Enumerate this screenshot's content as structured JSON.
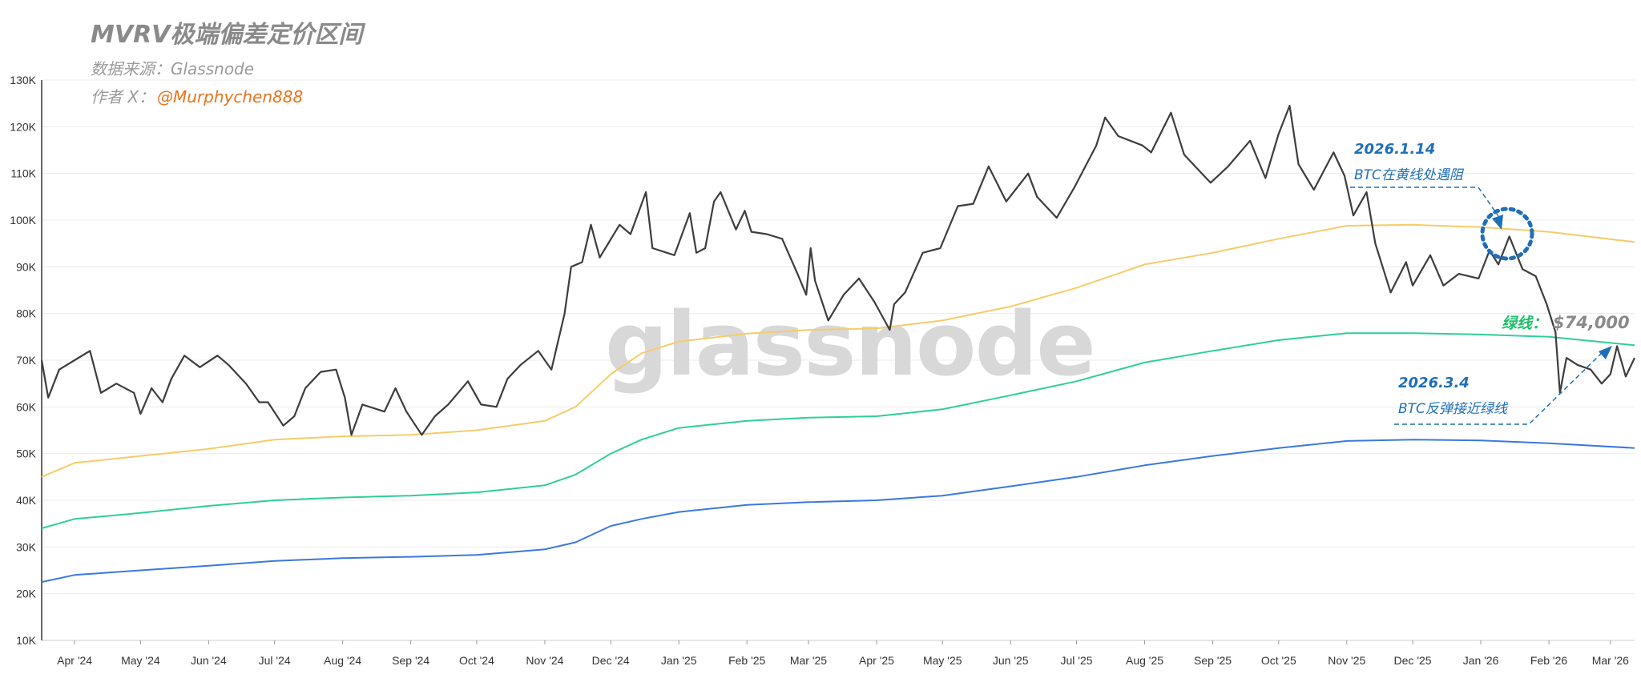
{
  "header": {
    "title": "MVRV极端偏差定价区间",
    "source": "数据来源：Glassnode",
    "author_prefix": "作者 X：",
    "author_handle": "@Murphychen888"
  },
  "watermark": "glassnode",
  "annotations": {
    "jan_date": "2026.1.14",
    "jan_text": "BTC在黄线处遇阻",
    "mar_date": "2026.3.4",
    "mar_text": "BTC反弹接近绿线",
    "green_line_label": "绿线：",
    "price_label": "$74,000"
  },
  "colors": {
    "btc": "#3d3d3d",
    "yellow": "#f5cc6a",
    "green": "#2fcf94",
    "blue": "#3b78de",
    "annotation": "#1f6fb8"
  },
  "chart_data": {
    "type": "line",
    "title": "MVRV极端偏差定价区间",
    "y_ticks": [
      "10K",
      "20K",
      "30K",
      "40K",
      "50K",
      "60K",
      "70K",
      "80K",
      "90K",
      "100K",
      "110K",
      "120K",
      "130K"
    ],
    "ylim": [
      10000,
      130000
    ],
    "x_ticks": [
      "Apr '24",
      "May '24",
      "Jun '24",
      "Jul '24",
      "Aug '24",
      "Sep '24",
      "Oct '24",
      "Nov '24",
      "Dec '24",
      "Jan '25",
      "Feb '25",
      "Mar '25",
      "Apr '25",
      "May '25",
      "Jun '25",
      "Jul '25",
      "Aug '25",
      "Sep '25",
      "Oct '25",
      "Nov '25",
      "Dec '25",
      "Jan '26",
      "Feb '26",
      "Mar '26"
    ],
    "xlim": [
      "2024-03-17",
      "2026-03-12"
    ],
    "series": [
      {
        "key": "btc",
        "color": "#3d3d3d",
        "points": [
          [
            "2024-03-17",
            70000
          ],
          [
            "2024-03-20",
            62000
          ],
          [
            "2024-03-25",
            68000
          ],
          [
            "2024-04-01",
            70000
          ],
          [
            "2024-04-08",
            72000
          ],
          [
            "2024-04-13",
            63000
          ],
          [
            "2024-04-20",
            65000
          ],
          [
            "2024-04-28",
            63000
          ],
          [
            "2024-05-01",
            58500
          ],
          [
            "2024-05-06",
            64000
          ],
          [
            "2024-05-11",
            61000
          ],
          [
            "2024-05-15",
            66000
          ],
          [
            "2024-05-21",
            71000
          ],
          [
            "2024-05-28",
            68500
          ],
          [
            "2024-06-05",
            71000
          ],
          [
            "2024-06-10",
            69000
          ],
          [
            "2024-06-18",
            65000
          ],
          [
            "2024-06-24",
            61000
          ],
          [
            "2024-06-28",
            61000
          ],
          [
            "2024-07-05",
            56000
          ],
          [
            "2024-07-10",
            58000
          ],
          [
            "2024-07-15",
            64000
          ],
          [
            "2024-07-22",
            67500
          ],
          [
            "2024-07-29",
            68000
          ],
          [
            "2024-08-02",
            62000
          ],
          [
            "2024-08-05",
            54000
          ],
          [
            "2024-08-10",
            60500
          ],
          [
            "2024-08-20",
            59000
          ],
          [
            "2024-08-25",
            64000
          ],
          [
            "2024-08-30",
            59000
          ],
          [
            "2024-09-06",
            54000
          ],
          [
            "2024-09-12",
            58000
          ],
          [
            "2024-09-18",
            60500
          ],
          [
            "2024-09-27",
            65500
          ],
          [
            "2024-10-03",
            60500
          ],
          [
            "2024-10-10",
            60000
          ],
          [
            "2024-10-15",
            66000
          ],
          [
            "2024-10-21",
            69000
          ],
          [
            "2024-10-29",
            72000
          ],
          [
            "2024-11-04",
            68000
          ],
          [
            "2024-11-10",
            80000
          ],
          [
            "2024-11-13",
            90000
          ],
          [
            "2024-11-18",
            91000
          ],
          [
            "2024-11-22",
            99000
          ],
          [
            "2024-11-26",
            92000
          ],
          [
            "2024-12-05",
            99000
          ],
          [
            "2024-12-10",
            97000
          ],
          [
            "2024-12-17",
            106000
          ],
          [
            "2024-12-20",
            94000
          ],
          [
            "2024-12-30",
            92500
          ],
          [
            "2025-01-06",
            101500
          ],
          [
            "2025-01-09",
            93000
          ],
          [
            "2025-01-13",
            94000
          ],
          [
            "2025-01-17",
            104000
          ],
          [
            "2025-01-20",
            106000
          ],
          [
            "2025-01-27",
            98000
          ],
          [
            "2025-01-31",
            102000
          ],
          [
            "2025-02-03",
            97500
          ],
          [
            "2025-02-10",
            97000
          ],
          [
            "2025-02-17",
            96000
          ],
          [
            "2025-02-24",
            88500
          ],
          [
            "2025-02-28",
            84000
          ],
          [
            "2025-03-02",
            94000
          ],
          [
            "2025-03-04",
            87000
          ],
          [
            "2025-03-10",
            78500
          ],
          [
            "2025-03-17",
            84000
          ],
          [
            "2025-03-24",
            87500
          ],
          [
            "2025-03-31",
            82500
          ],
          [
            "2025-04-07",
            76500
          ],
          [
            "2025-04-09",
            82000
          ],
          [
            "2025-04-14",
            84500
          ],
          [
            "2025-04-22",
            93000
          ],
          [
            "2025-04-30",
            94000
          ],
          [
            "2025-05-08",
            103000
          ],
          [
            "2025-05-15",
            103500
          ],
          [
            "2025-05-22",
            111500
          ],
          [
            "2025-05-30",
            104000
          ],
          [
            "2025-06-09",
            110000
          ],
          [
            "2025-06-13",
            105000
          ],
          [
            "2025-06-22",
            100500
          ],
          [
            "2025-06-30",
            107000
          ],
          [
            "2025-07-10",
            116000
          ],
          [
            "2025-07-14",
            122000
          ],
          [
            "2025-07-20",
            118000
          ],
          [
            "2025-07-31",
            116000
          ],
          [
            "2025-08-04",
            114500
          ],
          [
            "2025-08-13",
            123000
          ],
          [
            "2025-08-19",
            114000
          ],
          [
            "2025-08-26",
            110500
          ],
          [
            "2025-08-31",
            108000
          ],
          [
            "2025-09-08",
            111500
          ],
          [
            "2025-09-18",
            117000
          ],
          [
            "2025-09-25",
            109000
          ],
          [
            "2025-10-01",
            118500
          ],
          [
            "2025-10-06",
            124500
          ],
          [
            "2025-10-10",
            112000
          ],
          [
            "2025-10-17",
            106500
          ],
          [
            "2025-10-26",
            114500
          ],
          [
            "2025-10-31",
            109500
          ],
          [
            "2025-11-04",
            101000
          ],
          [
            "2025-11-10",
            106000
          ],
          [
            "2025-11-14",
            95000
          ],
          [
            "2025-11-21",
            84500
          ],
          [
            "2025-11-28",
            91000
          ],
          [
            "2025-12-01",
            86000
          ],
          [
            "2025-12-09",
            92500
          ],
          [
            "2025-12-15",
            86000
          ],
          [
            "2025-12-22",
            88500
          ],
          [
            "2025-12-31",
            87500
          ],
          [
            "2026-01-05",
            93500
          ],
          [
            "2026-01-09",
            90500
          ],
          [
            "2026-01-14",
            96500
          ],
          [
            "2026-01-20",
            89500
          ],
          [
            "2026-01-26",
            88000
          ],
          [
            "2026-01-31",
            82000
          ],
          [
            "2026-02-04",
            76000
          ],
          [
            "2026-02-06",
            63000
          ],
          [
            "2026-02-09",
            70500
          ],
          [
            "2026-02-14",
            69000
          ],
          [
            "2026-02-20",
            68000
          ],
          [
            "2026-02-25",
            65000
          ],
          [
            "2026-03-01",
            67000
          ],
          [
            "2026-03-04",
            73000
          ],
          [
            "2026-03-08",
            66500
          ],
          [
            "2026-03-12",
            70500
          ]
        ]
      },
      {
        "key": "yellow",
        "color": "#f5cc6a",
        "points": [
          [
            "2024-03-17",
            45000
          ],
          [
            "2024-04-01",
            48000
          ],
          [
            "2024-05-01",
            49500
          ],
          [
            "2024-06-01",
            51000
          ],
          [
            "2024-07-01",
            53000
          ],
          [
            "2024-08-01",
            53700
          ],
          [
            "2024-09-01",
            54000
          ],
          [
            "2024-10-01",
            55000
          ],
          [
            "2024-11-01",
            57000
          ],
          [
            "2024-11-15",
            60000
          ],
          [
            "2024-12-01",
            67000
          ],
          [
            "2024-12-15",
            71500
          ],
          [
            "2025-01-01",
            74000
          ],
          [
            "2025-02-01",
            75700
          ],
          [
            "2025-03-01",
            76500
          ],
          [
            "2025-04-01",
            76800
          ],
          [
            "2025-05-01",
            78500
          ],
          [
            "2025-06-01",
            81500
          ],
          [
            "2025-07-01",
            85500
          ],
          [
            "2025-08-01",
            90500
          ],
          [
            "2025-09-01",
            93000
          ],
          [
            "2025-10-01",
            96000
          ],
          [
            "2025-11-01",
            98800
          ],
          [
            "2025-12-01",
            99000
          ],
          [
            "2026-01-01",
            98500
          ],
          [
            "2026-02-01",
            97500
          ],
          [
            "2026-03-12",
            95300
          ]
        ]
      },
      {
        "key": "green",
        "color": "#2fcf94",
        "points": [
          [
            "2024-03-17",
            34000
          ],
          [
            "2024-04-01",
            36000
          ],
          [
            "2024-05-01",
            37300
          ],
          [
            "2024-06-01",
            38800
          ],
          [
            "2024-07-01",
            40000
          ],
          [
            "2024-08-01",
            40600
          ],
          [
            "2024-09-01",
            41000
          ],
          [
            "2024-10-01",
            41700
          ],
          [
            "2024-11-01",
            43200
          ],
          [
            "2024-11-15",
            45500
          ],
          [
            "2024-12-01",
            50000
          ],
          [
            "2024-12-15",
            53000
          ],
          [
            "2025-01-01",
            55500
          ],
          [
            "2025-02-01",
            57000
          ],
          [
            "2025-03-01",
            57700
          ],
          [
            "2025-04-01",
            58000
          ],
          [
            "2025-05-01",
            59500
          ],
          [
            "2025-06-01",
            62500
          ],
          [
            "2025-07-01",
            65500
          ],
          [
            "2025-08-01",
            69500
          ],
          [
            "2025-09-01",
            72000
          ],
          [
            "2025-10-01",
            74300
          ],
          [
            "2025-11-01",
            75800
          ],
          [
            "2025-12-01",
            75800
          ],
          [
            "2026-01-01",
            75500
          ],
          [
            "2026-02-01",
            75000
          ],
          [
            "2026-03-12",
            73200
          ]
        ]
      },
      {
        "key": "blue",
        "color": "#3b78de",
        "points": [
          [
            "2024-03-17",
            22500
          ],
          [
            "2024-04-01",
            24000
          ],
          [
            "2024-05-01",
            25000
          ],
          [
            "2024-06-01",
            26000
          ],
          [
            "2024-07-01",
            27000
          ],
          [
            "2024-08-01",
            27600
          ],
          [
            "2024-09-01",
            27900
          ],
          [
            "2024-10-01",
            28300
          ],
          [
            "2024-11-01",
            29500
          ],
          [
            "2024-11-15",
            31000
          ],
          [
            "2024-12-01",
            34500
          ],
          [
            "2024-12-15",
            36000
          ],
          [
            "2025-01-01",
            37500
          ],
          [
            "2025-02-01",
            39000
          ],
          [
            "2025-03-01",
            39600
          ],
          [
            "2025-04-01",
            40000
          ],
          [
            "2025-05-01",
            41000
          ],
          [
            "2025-06-01",
            43000
          ],
          [
            "2025-07-01",
            45000
          ],
          [
            "2025-08-01",
            47500
          ],
          [
            "2025-09-01",
            49500
          ],
          [
            "2025-10-01",
            51200
          ],
          [
            "2025-11-01",
            52700
          ],
          [
            "2025-12-01",
            53000
          ],
          [
            "2026-01-01",
            52800
          ],
          [
            "2026-02-01",
            52200
          ],
          [
            "2026-03-12",
            51200
          ]
        ]
      }
    ]
  }
}
